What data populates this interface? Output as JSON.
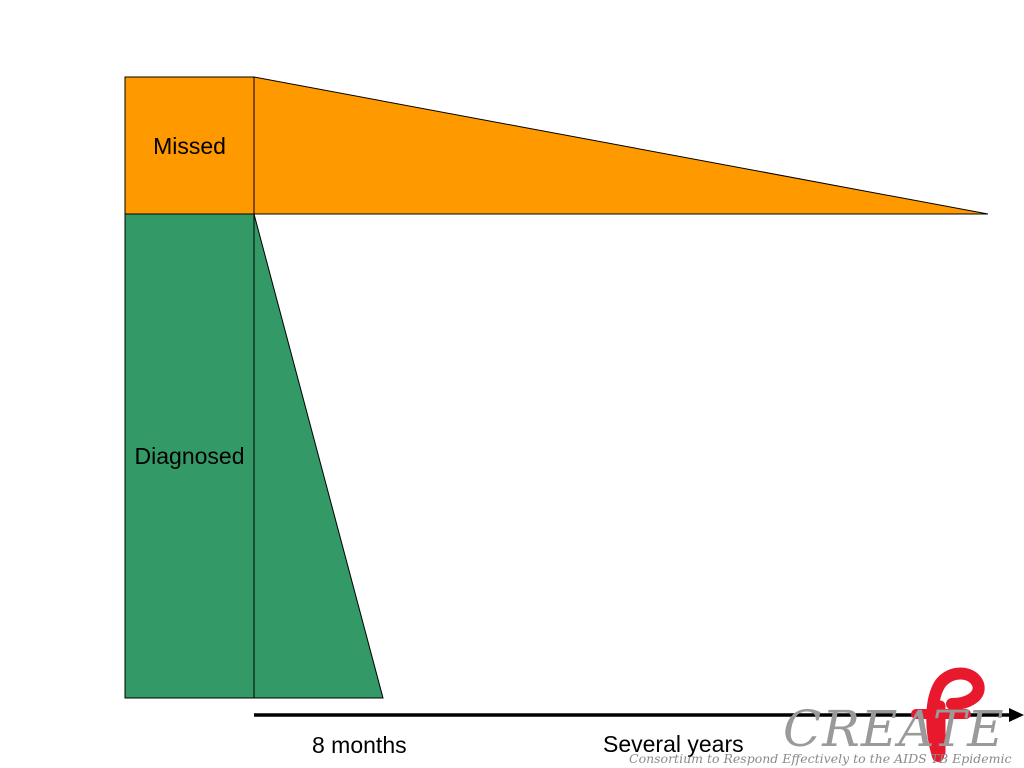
{
  "diagram": {
    "categories": {
      "missed": {
        "label": "Missed",
        "color": "#FF9900"
      },
      "diagnosed": {
        "label": "Diagnosed",
        "color": "#339966"
      }
    },
    "timeline": {
      "short_label": "8 months",
      "long_label": "Several years"
    }
  },
  "logo": {
    "wordmark": "CREATE",
    "tagline": "Consortium to Respond Effectively to the AIDS TB Epidemic",
    "ribbon_color": "#E8192C",
    "text_color": "#9A9A9A"
  }
}
